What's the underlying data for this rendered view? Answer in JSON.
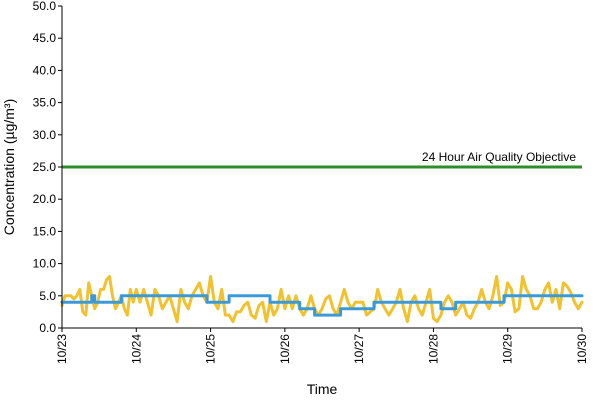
{
  "chart_data": {
    "type": "line",
    "title": "",
    "xlabel": "Time",
    "ylabel": "Concentration (µg/m³)",
    "ylim": [
      0,
      50
    ],
    "yticks": [
      "0.0",
      "5.0",
      "10.0",
      "15.0",
      "20.0",
      "25.0",
      "30.0",
      "35.0",
      "40.0",
      "45.0",
      "50.0"
    ],
    "xticks": [
      "10/23",
      "10/24",
      "10/25",
      "10/26",
      "10/27",
      "10/28",
      "10/29",
      "10/30"
    ],
    "xlim": [
      "10/23",
      "10/30"
    ],
    "grid": false,
    "legend": "none",
    "reference_line": {
      "label": "24 Hour Air Quality Objective",
      "value": 25,
      "color": "#2e8b2e"
    },
    "series": [
      {
        "color": "#f2c12e",
        "x": [
          0.0,
          0.04,
          0.08,
          0.12,
          0.16,
          0.2,
          0.24,
          0.28,
          0.32,
          0.36,
          0.4,
          0.44,
          0.48,
          0.52,
          0.56,
          0.6,
          0.64,
          0.68,
          0.72,
          0.76,
          0.8,
          0.84,
          0.88,
          0.92,
          0.96,
          1.0,
          1.05,
          1.1,
          1.15,
          1.2,
          1.25,
          1.3,
          1.35,
          1.4,
          1.45,
          1.5,
          1.55,
          1.6,
          1.65,
          1.7,
          1.75,
          1.8,
          1.85,
          1.9,
          1.95,
          2.0,
          2.05,
          2.1,
          2.15,
          2.2,
          2.25,
          2.3,
          2.35,
          2.4,
          2.45,
          2.5,
          2.55,
          2.6,
          2.65,
          2.7,
          2.75,
          2.8,
          2.85,
          2.9,
          2.95,
          3.0,
          3.05,
          3.1,
          3.15,
          3.2,
          3.25,
          3.3,
          3.35,
          3.4,
          3.45,
          3.5,
          3.55,
          3.6,
          3.65,
          3.7,
          3.75,
          3.8,
          3.85,
          3.9,
          3.95,
          4.0,
          4.05,
          4.1,
          4.15,
          4.2,
          4.25,
          4.3,
          4.35,
          4.4,
          4.45,
          4.5,
          4.55,
          4.6,
          4.65,
          4.7,
          4.75,
          4.8,
          4.85,
          4.9,
          4.95,
          5.0,
          5.05,
          5.1,
          5.15,
          5.2,
          5.25,
          5.3,
          5.35,
          5.4,
          5.45,
          5.5,
          5.55,
          5.6,
          5.65,
          5.7,
          5.75,
          5.8,
          5.85,
          5.9,
          5.95,
          6.0,
          6.05,
          6.1,
          6.15,
          6.2,
          6.25,
          6.3,
          6.35,
          6.4,
          6.45,
          6.5,
          6.55,
          6.6,
          6.65,
          6.7,
          6.75,
          6.8,
          6.85,
          6.9,
          6.95,
          7.0
        ],
        "y": [
          3.5,
          5.0,
          5.0,
          5.0,
          4.5,
          5.0,
          6.0,
          2.5,
          2.0,
          7.0,
          5.0,
          3.0,
          4.0,
          6.0,
          6.0,
          7.5,
          8.0,
          5.0,
          3.0,
          4.0,
          5.0,
          3.0,
          2.0,
          6.0,
          4.0,
          6.0,
          4.0,
          6.0,
          4.0,
          2.0,
          6.0,
          5.0,
          3.0,
          4.0,
          5.0,
          3.0,
          1.0,
          6.0,
          4.0,
          3.0,
          5.0,
          6.0,
          7.0,
          5.0,
          4.0,
          8.0,
          4.0,
          3.0,
          6.0,
          2.0,
          2.0,
          1.0,
          2.5,
          2.5,
          3.5,
          4.0,
          2.0,
          1.5,
          3.5,
          4.0,
          1.0,
          4.0,
          2.0,
          3.0,
          6.0,
          3.0,
          5.0,
          3.0,
          5.0,
          3.0,
          2.0,
          3.0,
          5.0,
          3.0,
          2.0,
          3.0,
          4.5,
          5.0,
          3.0,
          2.0,
          4.0,
          6.0,
          4.0,
          3.0,
          4.0,
          4.0,
          4.0,
          2.0,
          2.5,
          3.0,
          6.0,
          4.0,
          3.0,
          2.0,
          3.0,
          4.0,
          6.0,
          3.0,
          1.0,
          4.0,
          5.0,
          3.0,
          2.0,
          4.0,
          6.0,
          1.5,
          1.0,
          2.0,
          4.0,
          5.0,
          4.0,
          2.0,
          3.0,
          4.0,
          2.0,
          1.5,
          3.0,
          4.0,
          6.0,
          4.0,
          3.0,
          5.0,
          8.0,
          3.5,
          4.0,
          7.0,
          6.0,
          2.5,
          3.0,
          8.0,
          6.0,
          5.0,
          3.0,
          3.0,
          4.0,
          6.0,
          7.0,
          4.0,
          6.0,
          3.0,
          7.0,
          6.5,
          5.5,
          4.0,
          3.0,
          4.0
        ]
      },
      {
        "color": "#3a9ad9",
        "x": [
          0.0,
          0.4,
          0.4,
          0.44,
          0.44,
          0.8,
          0.8,
          1.0,
          1.0,
          1.95,
          1.95,
          2.25,
          2.25,
          2.3,
          2.3,
          2.8,
          2.8,
          3.2,
          3.2,
          3.4,
          3.4,
          3.75,
          3.75,
          4.2,
          4.2,
          5.1,
          5.1,
          5.2,
          5.2,
          5.3,
          5.3,
          5.95,
          5.95,
          7.0
        ],
        "y": [
          4.0,
          4.0,
          5.0,
          5.0,
          4.0,
          4.0,
          5.0,
          5.0,
          5.0,
          5.0,
          4.0,
          4.0,
          5.0,
          5.0,
          5.0,
          5.0,
          4.0,
          4.0,
          3.0,
          3.0,
          2.0,
          2.0,
          3.0,
          3.0,
          4.0,
          4.0,
          3.0,
          3.0,
          3.0,
          3.0,
          4.0,
          4.0,
          5.0,
          5.0
        ]
      }
    ]
  }
}
